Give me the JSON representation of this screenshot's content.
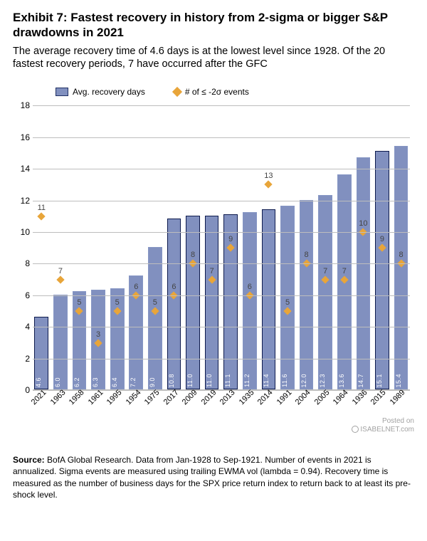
{
  "title": "Exhibit 7: Fastest recovery in history from 2-sigma or bigger S&P drawdowns in 2021",
  "subtitle": "The average recovery time of 4.6 days is at the lowest level since 1928. Of the 20 fastest recovery periods, 7 have occurred after the GFC",
  "legend": {
    "bar": "Avg. recovery days",
    "diamond": "# of ≤ -2σ events"
  },
  "chart": {
    "type": "bar+scatter",
    "y_max": 18,
    "y_ticks": [
      0,
      2,
      4,
      6,
      8,
      10,
      12,
      14,
      16,
      18
    ],
    "grid_color": "#bdbdbd",
    "bar_fill": "#8190bf",
    "bar_border": "#8696c4",
    "bar_highlight_border": "#0d1a4d",
    "diamond_color": "#e8a53a",
    "label_fontsize": 11,
    "value_fontsize": 9,
    "background": "#ffffff",
    "highlight_indices": [
      0,
      7,
      8,
      9,
      10,
      12,
      18
    ],
    "categories": [
      "2021",
      "1963",
      "1958",
      "1961",
      "1995",
      "1954",
      "1975",
      "2017",
      "2009",
      "2019",
      "2013",
      "1935",
      "2014",
      "1991",
      "2004",
      "2005",
      "1964",
      "1936",
      "2015",
      "1989"
    ],
    "bar_values": [
      4.6,
      6.0,
      6.2,
      6.3,
      6.4,
      7.2,
      9.0,
      10.8,
      11.0,
      11.0,
      11.1,
      11.2,
      11.4,
      11.6,
      12.0,
      12.3,
      13.6,
      14.7,
      15.1,
      15.4
    ],
    "bar_labels": [
      "4.6",
      "6.0",
      "6.2",
      "6.3",
      "6.4",
      "7.2",
      "9.0",
      "10.8",
      "11.0",
      "11.0",
      "11.1",
      "11.2",
      "11.4",
      "11.6",
      "12.0",
      "12.3",
      "13.6",
      "14.7",
      "15.1",
      "15.4"
    ],
    "diamond_values": [
      11,
      7,
      5,
      3,
      5,
      6,
      5,
      6,
      8,
      7,
      9,
      6,
      13,
      5,
      8,
      7,
      7,
      10,
      9,
      8
    ]
  },
  "source_label": "Source:",
  "source_text": "BofA Global Research. Data from Jan-1928 to Sep-1921. Number of events in 2021 is annualized. Sigma events are measured using trailing EWMA vol (lambda = 0.94). Recovery time is measured as the number of business days for the SPX price return index to return back to at least its pre-shock level.",
  "watermark": {
    "line1": "Posted on",
    "line2": "ISABELNET.com"
  }
}
